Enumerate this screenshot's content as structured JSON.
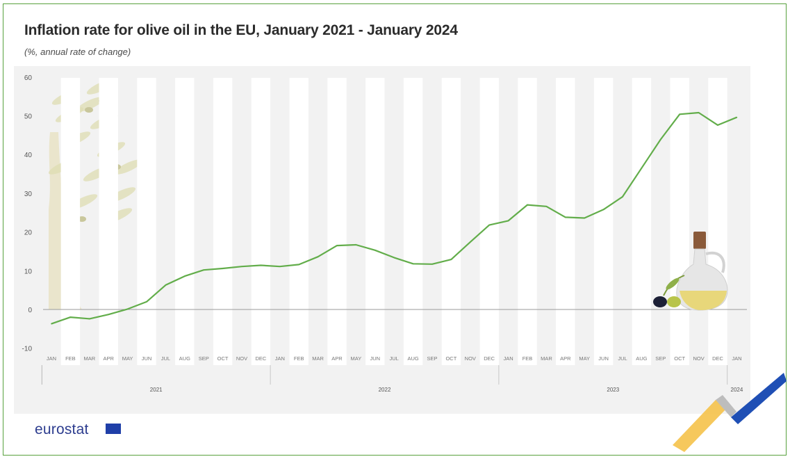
{
  "title": "Inflation rate for olive oil in the EU, January 2021 - January 2024",
  "subtitle": "(%, annual rate of change)",
  "logo_text": "eurostat",
  "colors": {
    "line": "#62ad4a",
    "frame": "#57a03d",
    "panel": "#f2f2f2",
    "stripe": "#ffffff",
    "eu_blue": "#1f3fa8",
    "brand_blue": "#1f4fb5",
    "brand_yellow": "#f5c24a"
  },
  "decorations": [
    "olive-tree-illustration",
    "olive-oil-bottle-illustration",
    "eurostat-brand-swoosh",
    "eu-flag-icon"
  ],
  "chart_data": {
    "type": "line",
    "title": "Inflation rate for olive oil in the EU, January 2021 - January 2024",
    "subtitle": "(%, annual rate of change)",
    "xlabel": "",
    "ylabel": "",
    "ylim": [
      -10,
      60
    ],
    "yticks": [
      60,
      50,
      40,
      30,
      20,
      10,
      0,
      -10
    ],
    "grid": "alternating vertical month stripes",
    "legend": "none",
    "x": [
      "JAN",
      "FEB",
      "MAR",
      "APR",
      "MAY",
      "JUN",
      "JUL",
      "AUG",
      "SEP",
      "OCT",
      "NOV",
      "DEC",
      "JAN",
      "FEB",
      "MAR",
      "APR",
      "MAY",
      "JUN",
      "JUL",
      "AUG",
      "SEP",
      "OCT",
      "NOV",
      "DEC",
      "JAN",
      "FEB",
      "MAR",
      "APR",
      "MAY",
      "JUN",
      "JUL",
      "AUG",
      "SEP",
      "OCT",
      "NOV",
      "DEC",
      "JAN"
    ],
    "years": [
      {
        "label": "2021",
        "start": 0,
        "end": 11
      },
      {
        "label": "2022",
        "start": 12,
        "end": 23
      },
      {
        "label": "2023",
        "start": 24,
        "end": 35
      },
      {
        "label": "2024",
        "start": 36,
        "end": 36
      }
    ],
    "series": [
      {
        "values": [
          -3.7,
          -2.0,
          -2.4,
          -1.3,
          0.1,
          2.0,
          6.3,
          8.6,
          10.2,
          10.6,
          11.1,
          11.4,
          11.1,
          11.6,
          13.6,
          16.5,
          16.7,
          15.3,
          13.4,
          11.8,
          11.7,
          12.9,
          17.4,
          21.8,
          22.9,
          27.0,
          26.6,
          23.8,
          23.6,
          25.8,
          29.1,
          36.5,
          43.9,
          50.4,
          50.8,
          47.6,
          49.6
        ]
      }
    ]
  }
}
